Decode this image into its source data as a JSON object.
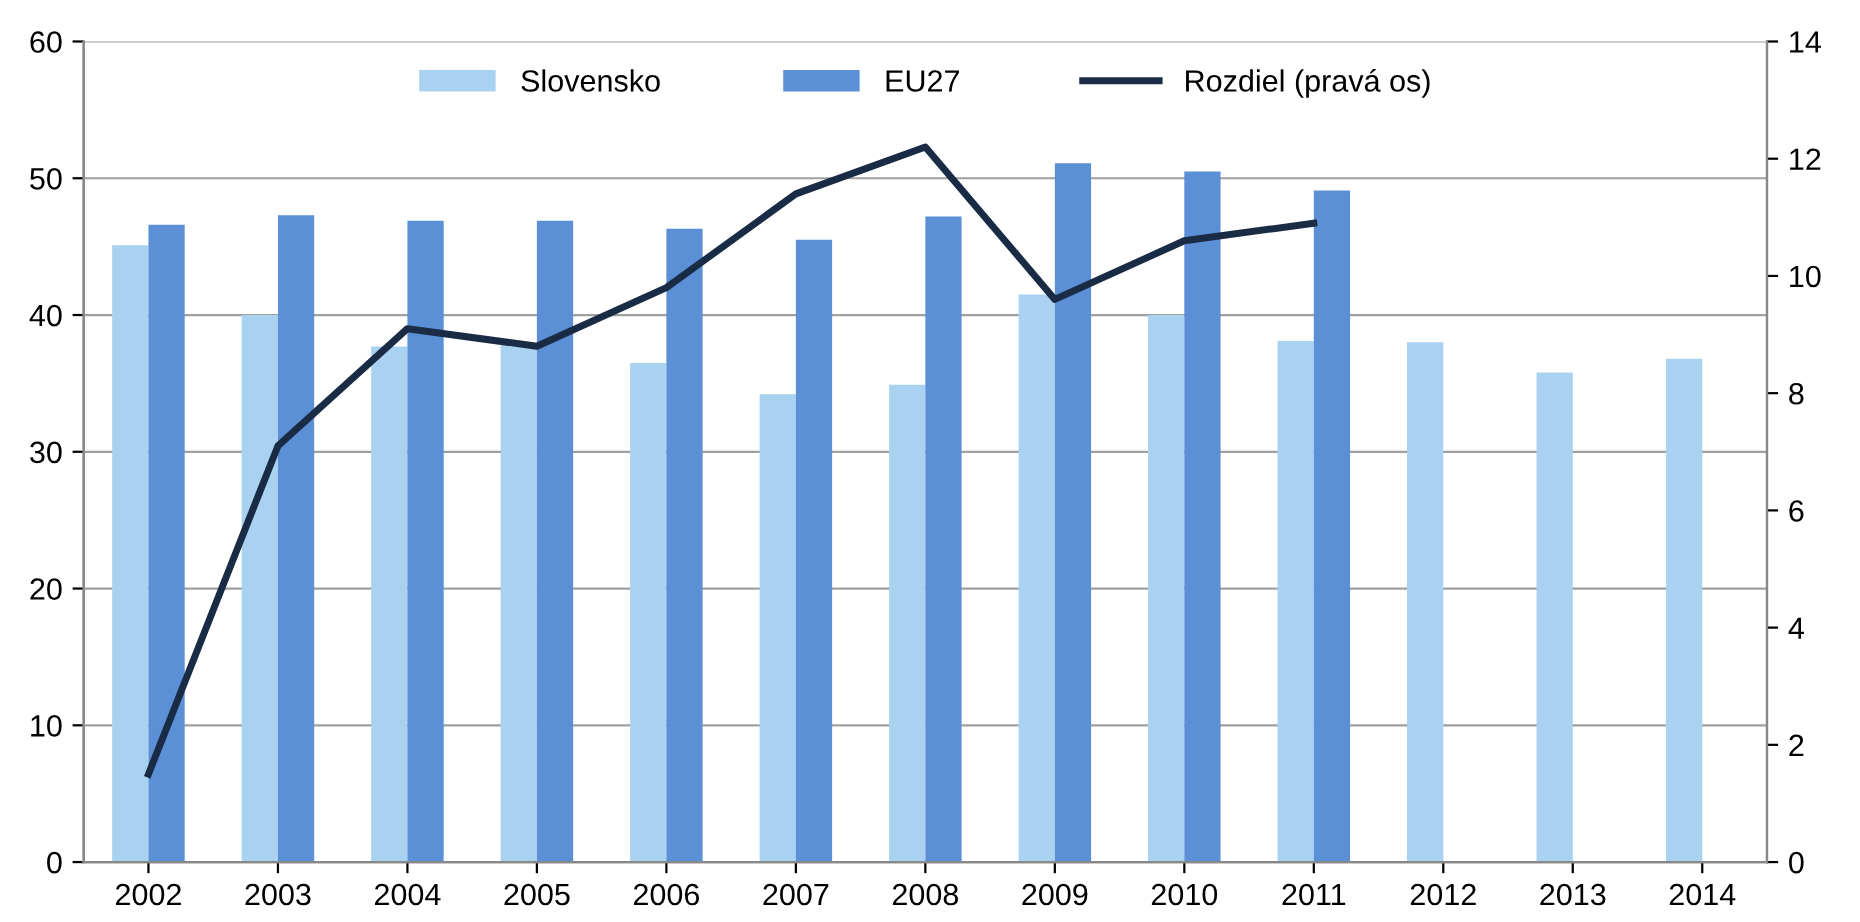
{
  "chart_data": {
    "type": "bar",
    "categories": [
      "2002",
      "2003",
      "2004",
      "2005",
      "2006",
      "2007",
      "2008",
      "2009",
      "2010",
      "2011",
      "2012",
      "2013",
      "2014"
    ],
    "series": [
      {
        "name": "Slovensko",
        "color": "#a9d1f0",
        "values": [
          45.1,
          40.0,
          37.7,
          37.8,
          36.5,
          34.2,
          34.9,
          41.5,
          40.0,
          38.1,
          38.0,
          35.8,
          36.8
        ]
      },
      {
        "name": "EU27",
        "color": "#5b8fd6",
        "values": [
          46.6,
          47.3,
          46.9,
          46.9,
          46.3,
          45.5,
          47.2,
          51.1,
          50.5,
          49.1,
          null,
          null,
          null
        ]
      },
      {
        "name": "Rozdiel (pravá os)",
        "type": "line",
        "axis": "y2",
        "color": "#1a2b45",
        "marker": "none",
        "values": [
          1.5,
          7.1,
          9.1,
          8.8,
          9.8,
          11.4,
          12.2,
          9.6,
          10.6,
          10.9,
          null,
          null,
          null
        ]
      }
    ],
    "ylim": [
      0,
      60
    ],
    "yticks": [
      0,
      10,
      20,
      30,
      40,
      50,
      60
    ],
    "y2lim": [
      0,
      14
    ],
    "y2ticks": [
      0,
      2,
      4,
      6,
      8,
      10,
      12,
      14
    ],
    "grid": "y",
    "legend": "top"
  }
}
